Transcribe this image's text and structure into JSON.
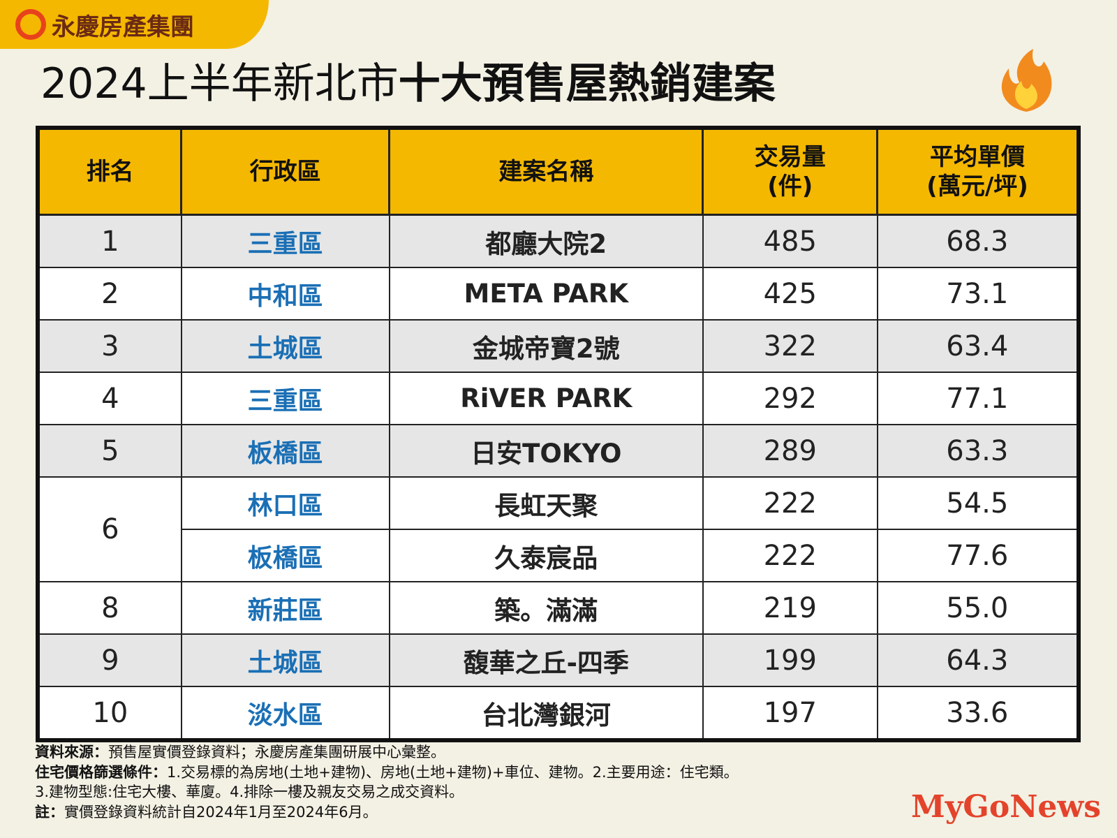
{
  "header": {
    "brand": "永慶房產集團",
    "title_light": "2024上半年新北市",
    "title_bold": "十大預售屋熱銷建案"
  },
  "table": {
    "columns": [
      "排名",
      "行政區",
      "建案名稱",
      "交易量(件)",
      "平均單價(萬元/坪)"
    ],
    "column_lines": [
      [
        "排名"
      ],
      [
        "行政區"
      ],
      [
        "建案名稱"
      ],
      [
        "交易量",
        "(件)"
      ],
      [
        "平均單價",
        "(萬元/坪)"
      ]
    ],
    "rows": [
      [
        "1",
        "三重區",
        "都廳大院2",
        "485",
        "68.3"
      ],
      [
        "2",
        "中和區",
        "META PARK",
        "425",
        "73.1"
      ],
      [
        "3",
        "土城區",
        "金城帝寶2號",
        "322",
        "63.4"
      ],
      [
        "4",
        "三重區",
        "RiVER PARK",
        "292",
        "77.1"
      ],
      [
        "5",
        "板橋區",
        "日安TOKYO",
        "289",
        "63.3"
      ],
      [
        "6",
        "林口區",
        "長虹天聚",
        "222",
        "54.5"
      ],
      [
        null,
        "板橋區",
        "久泰宸品",
        "222",
        "77.6"
      ],
      [
        "8",
        "新莊區",
        "築。滿滿",
        "219",
        "55.0"
      ],
      [
        "9",
        "土城區",
        "馥華之丘-四季",
        "199",
        "64.3"
      ],
      [
        "10",
        "淡水區",
        "台北灣銀河",
        "197",
        "33.6"
      ]
    ]
  },
  "notes": [
    {
      "label": "資料來源：",
      "text": "預售屋實價登錄資料；永慶房產集團研展中心彙整。"
    },
    {
      "label": "住宅價格篩選條件：",
      "text": "1.交易標的為房地(土地+建物)、房地(土地+建物)+車位、建物。2.主要用途：住宅類。"
    },
    {
      "text": "3.建物型態:住宅大樓、華廈。4.排除一樓及親友交易之成交資料。"
    },
    {
      "label": "註：",
      "text": "實價登錄資料統計自2024年1月至2024年6月。"
    }
  ],
  "watermark": "MyGoNews"
}
